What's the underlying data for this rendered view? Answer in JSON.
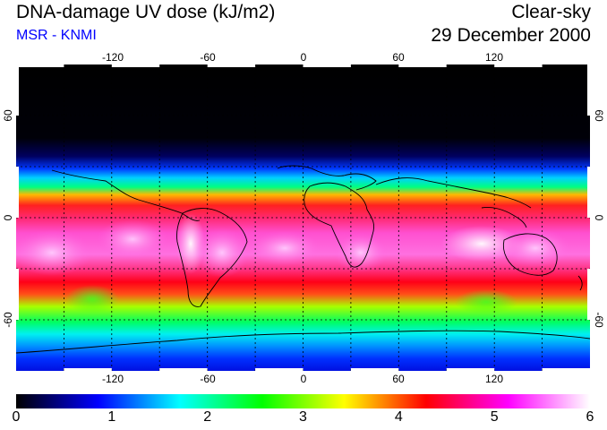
{
  "header": {
    "title": "DNA-damage UV dose (kJ/m2)",
    "source": "MSR - KNMI",
    "condition": "Clear-sky",
    "date": "29 December 2000"
  },
  "map": {
    "lon_ticks": [
      "-120",
      "-60",
      "0",
      "60",
      "120"
    ],
    "lat_ticks_left": [
      "60",
      "0",
      "-60"
    ],
    "lat_ticks_right": [
      "60",
      "0",
      "-60"
    ],
    "lon_range": [
      -180,
      180
    ],
    "lat_range": [
      -90,
      90
    ]
  },
  "legend": {
    "labels": [
      "0",
      "1",
      "2",
      "3",
      "4",
      "5",
      "6"
    ],
    "min": 0,
    "max": 6,
    "colors": [
      "#000000",
      "#0000ff",
      "#00ffff",
      "#00ff00",
      "#ffff00",
      "#ff0000",
      "#ff00ff",
      "#ffffff"
    ]
  }
}
